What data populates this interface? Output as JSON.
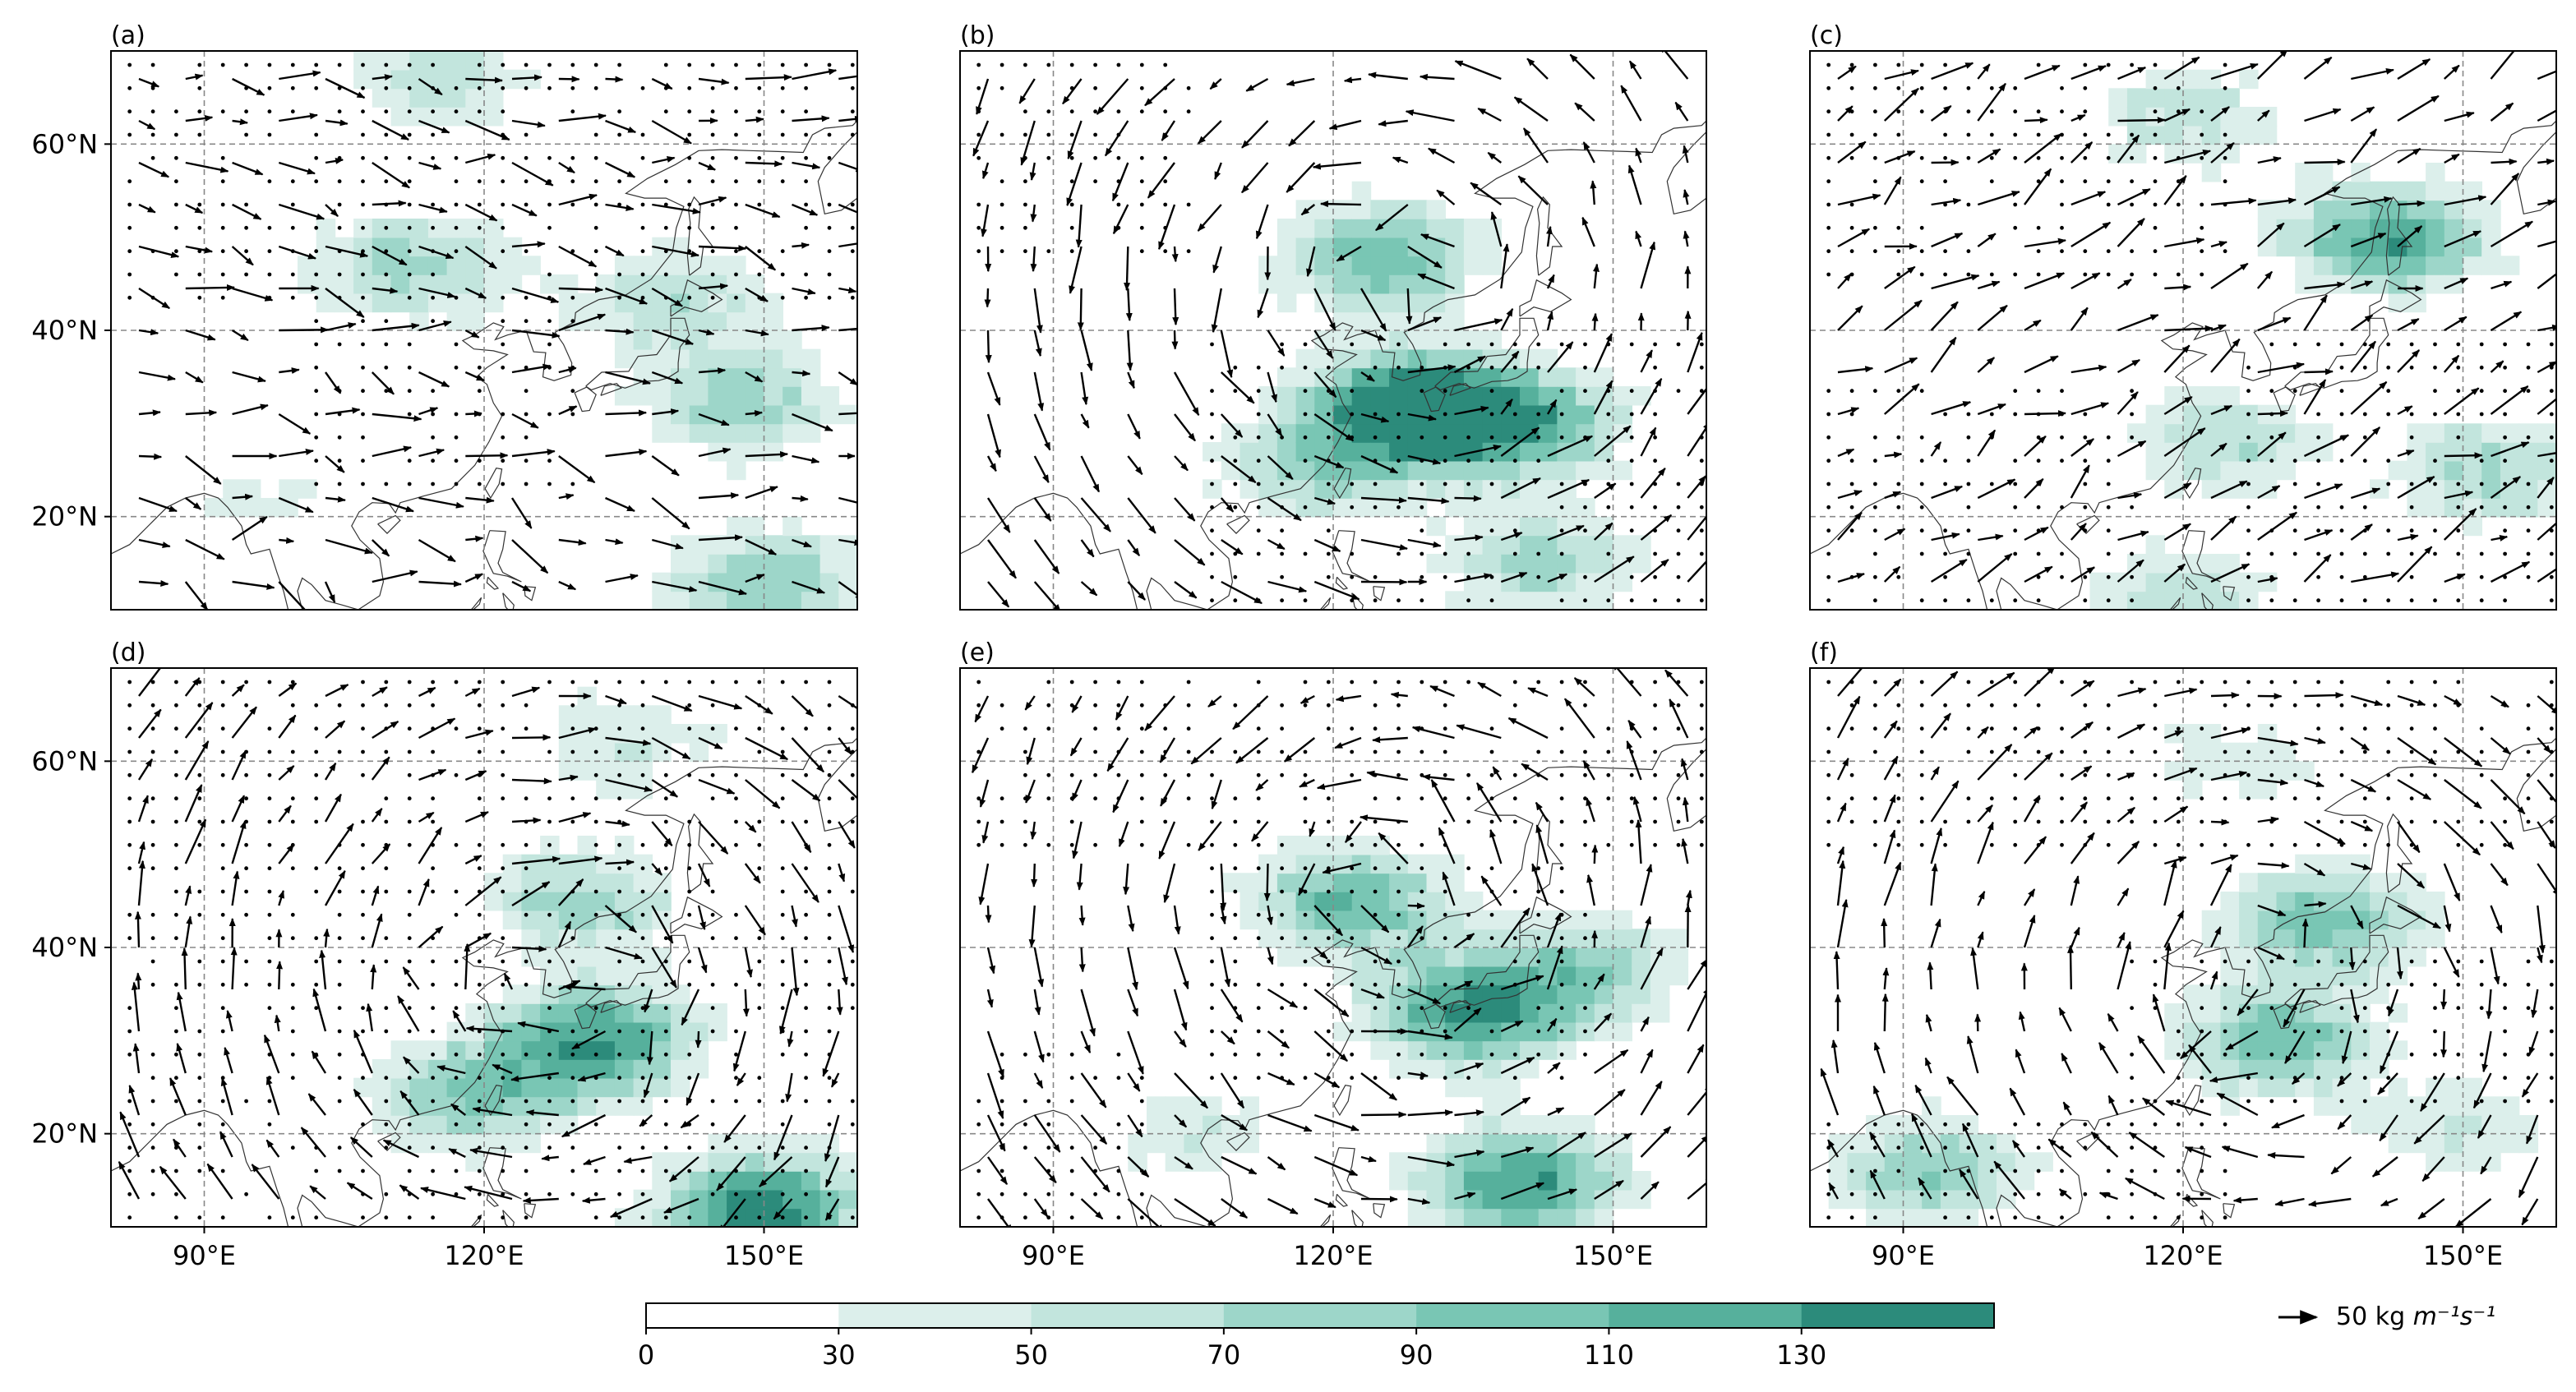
{
  "chart_data": {
    "type": "heatmap",
    "description_kind": "six-panel map figure: moisture flux magnitude (shaded) with flux vectors and stippling",
    "lon_range": [
      80,
      160
    ],
    "lat_range": [
      10,
      70
    ],
    "grid": true,
    "x_ticks": {
      "values": [
        90,
        120,
        150
      ],
      "labels": [
        "90°E",
        "120°E",
        "150°E"
      ]
    },
    "y_ticks": {
      "values": [
        60,
        40,
        20
      ],
      "labels": [
        "60°N",
        "40°N",
        "20°N"
      ]
    },
    "panels": [
      {
        "label": "(a)",
        "centers": [
          [
            112,
            47,
            0.55
          ],
          [
            140,
            43,
            0.45
          ],
          [
            148,
            32,
            0.55
          ],
          [
            150,
            13,
            0.6
          ],
          [
            115,
            67,
            0.4
          ],
          [
            95,
            22,
            0.25
          ]
        ],
        "circulation": "westerly"
      },
      {
        "label": "(b)",
        "centers": [
          [
            125,
            48,
            0.7
          ],
          [
            128,
            32,
            1.0
          ],
          [
            140,
            30,
            0.8
          ],
          [
            142,
            15,
            0.5
          ],
          [
            118,
            25,
            0.5
          ]
        ],
        "circulation": "cyclonic"
      },
      {
        "label": "(c)",
        "centers": [
          [
            142,
            50,
            0.85
          ],
          [
            120,
            63,
            0.4
          ],
          [
            125,
            28,
            0.45
          ],
          [
            153,
            25,
            0.5
          ],
          [
            120,
            12,
            0.4
          ]
        ],
        "circulation": "southwesterly"
      },
      {
        "label": "(d)",
        "centers": [
          [
            130,
            45,
            0.55
          ],
          [
            132,
            30,
            0.9
          ],
          [
            118,
            24,
            0.6
          ],
          [
            150,
            12,
            1.0
          ],
          [
            135,
            62,
            0.35
          ]
        ],
        "circulation": "anticyclonic"
      },
      {
        "label": "(e)",
        "centers": [
          [
            122,
            45,
            0.75
          ],
          [
            135,
            33,
            0.9
          ],
          [
            140,
            15,
            0.9
          ],
          [
            148,
            38,
            0.5
          ],
          [
            105,
            20,
            0.3
          ]
        ],
        "circulation": "cyclonic"
      },
      {
        "label": "(f)",
        "centers": [
          [
            135,
            43,
            0.7
          ],
          [
            130,
            30,
            0.7
          ],
          [
            93,
            16,
            0.6
          ],
          [
            150,
            20,
            0.35
          ],
          [
            125,
            60,
            0.3
          ]
        ],
        "circulation": "anticyclonic"
      }
    ],
    "colorbar": {
      "levels": [
        0,
        30,
        50,
        70,
        90,
        110,
        130
      ],
      "tick_labels": [
        "0",
        "30",
        "50",
        "70",
        "90",
        "110",
        "130"
      ],
      "colors": [
        "#ffffff",
        "#dcefeb",
        "#c2e5dd",
        "#9dd6c9",
        "#79c6b4",
        "#56b09c",
        "#2c8b7b"
      ]
    },
    "reference_vector": {
      "label_prefix": "50 kg ",
      "label_unit": "m⁻¹s⁻¹"
    }
  }
}
